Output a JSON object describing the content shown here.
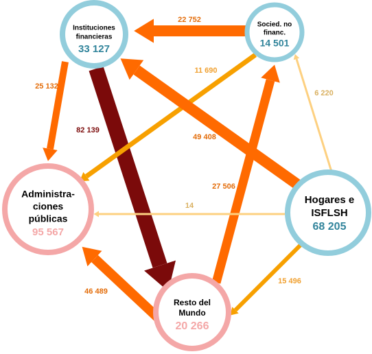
{
  "nodes": [
    {
      "lines": [
        "Instituciones",
        "financieras"
      ],
      "value": "33 127"
    },
    {
      "lines": [
        "Socied. no",
        "financ."
      ],
      "value": "14 501"
    },
    {
      "lines": [
        "Administra-",
        "ciones",
        "públicas"
      ],
      "value": "95 567"
    },
    {
      "lines": [
        "Hogares e",
        "ISFLSH"
      ],
      "value": "68 205"
    },
    {
      "lines": [
        "Resto del",
        "Mundo"
      ],
      "value": "20 266"
    }
  ],
  "flows": [
    "22 752",
    "25 132",
    "82 139",
    "11 690",
    "49 408",
    "6 220",
    "27 506",
    "14",
    "15 496",
    "46 489"
  ]
}
